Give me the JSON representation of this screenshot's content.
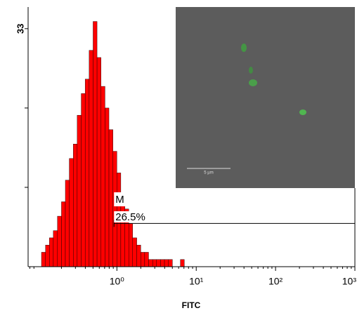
{
  "chart_data": {
    "type": "histogram",
    "x_label": "FITC",
    "xscale": "log",
    "xlim": [
      0.076,
      1000
    ],
    "xticks": [
      {
        "value": 1,
        "label": "10⁰"
      },
      {
        "value": 10,
        "label": "10¹"
      },
      {
        "value": 100,
        "label": "10²"
      },
      {
        "value": 1000,
        "label": "10³"
      }
    ],
    "ylim": [
      0,
      36
    ],
    "yticks": [
      33
    ],
    "yminor": [
      11,
      22
    ],
    "color": "#ff0000",
    "bins": [
      0.112,
      0.126,
      0.141,
      0.158,
      0.178,
      0.2,
      0.224,
      0.251,
      0.282,
      0.316,
      0.355,
      0.398,
      0.447,
      0.501,
      0.562,
      0.631,
      0.708,
      0.794,
      0.891,
      1,
      1.12,
      1.26,
      1.41,
      1.58,
      1.78,
      2.0,
      2.24,
      2.51,
      2.82,
      3.16,
      3.55,
      3.98,
      4.47,
      5.01,
      5.62,
      6.31,
      7.08
    ],
    "counts": [
      2,
      3,
      4,
      5,
      7,
      9,
      12,
      15,
      17,
      21,
      24,
      26,
      30,
      34,
      29,
      25,
      22,
      19,
      16,
      13,
      10,
      8,
      6,
      4,
      3,
      2,
      2,
      1,
      1,
      1,
      1,
      1,
      1,
      0,
      0,
      1
    ],
    "marker": {
      "label": "M",
      "range": [
        0.92,
        1000
      ],
      "level": 6,
      "percent": 26.5,
      "percent_label": "26.5%"
    },
    "inset": {
      "scale_bar": "5 µm"
    }
  }
}
